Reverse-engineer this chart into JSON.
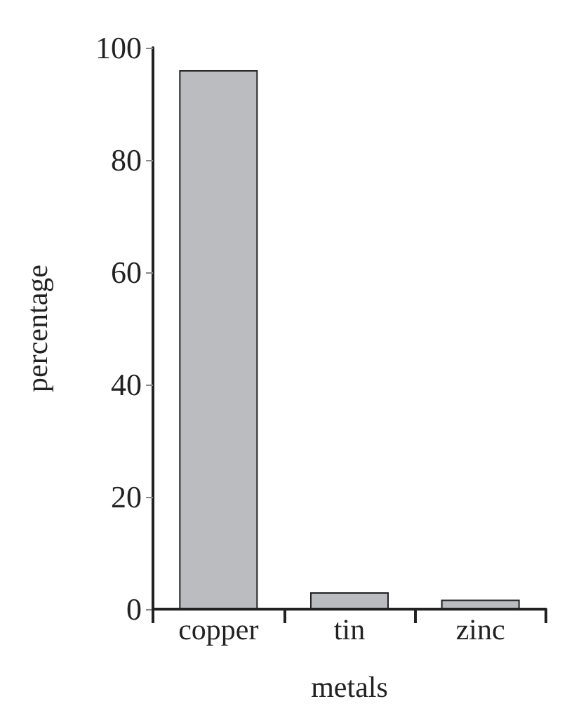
{
  "chart_data": {
    "type": "bar",
    "xlabel": "metals",
    "ylabel": "percentage",
    "categories": [
      "copper",
      "tin",
      "zinc"
    ],
    "values": [
      96,
      3,
      1.7
    ],
    "color": "#bbbcc0",
    "ylim": [
      0,
      100
    ],
    "yticks": [
      0,
      20,
      40,
      60,
      80,
      100
    ],
    "grid": false
  }
}
